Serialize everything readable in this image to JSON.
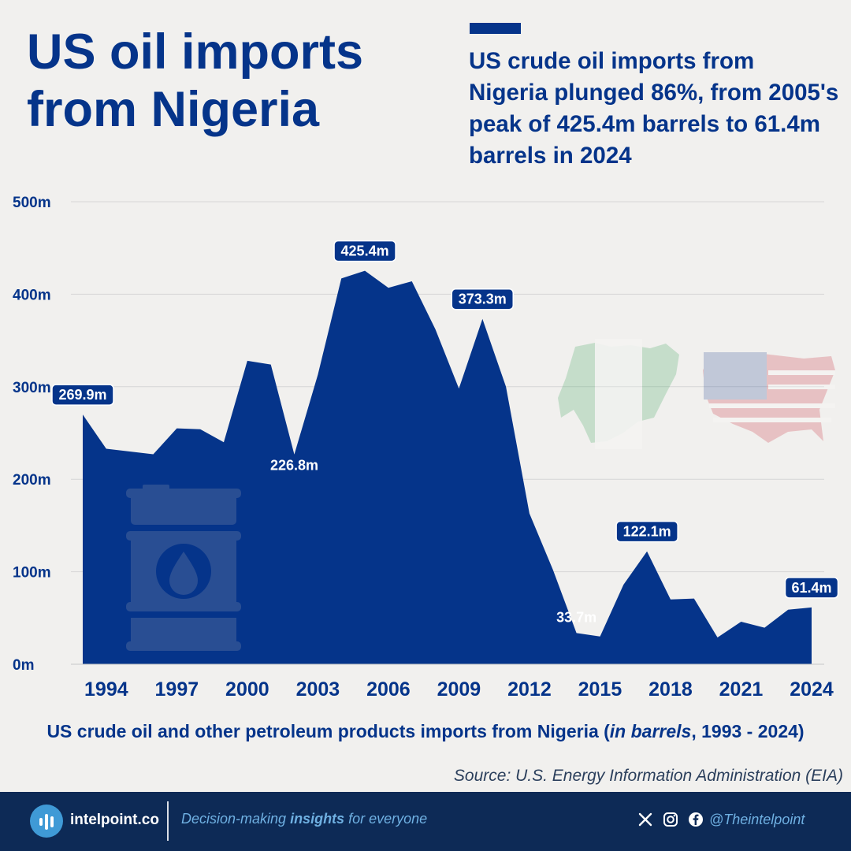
{
  "header": {
    "title_line1": "US oil imports",
    "title_line2": "from Nigeria",
    "subtitle": "US crude oil imports from Nigeria plunged 86%, from 2005's peak of 425.4m barrels to 61.4m barrels in 2024"
  },
  "colors": {
    "primary": "#05348a",
    "background": "#f1f0ee",
    "footer": "#0d2a56",
    "accent_blue": "#3f9ad6"
  },
  "chart_data": {
    "type": "area",
    "x": [
      1993,
      1994,
      1995,
      1996,
      1997,
      1998,
      1999,
      2000,
      2001,
      2002,
      2003,
      2004,
      2005,
      2006,
      2007,
      2008,
      2009,
      2010,
      2011,
      2012,
      2013,
      2014,
      2015,
      2016,
      2017,
      2018,
      2019,
      2020,
      2021,
      2022,
      2023,
      2024
    ],
    "values": [
      269.9,
      233,
      230,
      227,
      255,
      254,
      240,
      328,
      324,
      226.8,
      313,
      417,
      425.4,
      407,
      414,
      362,
      298,
      373.3,
      300,
      163,
      102,
      33.7,
      30,
      86,
      122.1,
      70,
      71,
      29,
      46,
      39.5,
      59,
      61.4
    ],
    "xticks": [
      "1994",
      "1997",
      "2000",
      "2003",
      "2006",
      "2009",
      "2012",
      "2015",
      "2018",
      "2021",
      "2024"
    ],
    "yticks": [
      "0m",
      "100m",
      "200m",
      "300m",
      "400m",
      "500m"
    ],
    "ylim": [
      0,
      500
    ],
    "annotations": [
      {
        "year": 1993,
        "label": "269.9m",
        "style": "box"
      },
      {
        "year": 2002,
        "label": "226.8m",
        "style": "plain"
      },
      {
        "year": 2005,
        "label": "425.4m",
        "style": "box"
      },
      {
        "year": 2010,
        "label": "373.3m",
        "style": "box"
      },
      {
        "year": 2014,
        "label": "33.7m",
        "style": "plain"
      },
      {
        "year": 2017,
        "label": "122.1m",
        "style": "box"
      },
      {
        "year": 2024,
        "label": "61.4m",
        "style": "box"
      }
    ],
    "grid": true
  },
  "caption": {
    "prefix": "US crude oil and other petroleum products imports from Nigeria (",
    "italic": "in barrels",
    "suffix": ", 1993 - 2024)"
  },
  "source": "Source: U.S. Energy Information Administration (EIA)",
  "footer": {
    "brand": "intelpoint.co",
    "tagline_pre": "Decision-making ",
    "tagline_bold": "insights",
    "tagline_post": " for everyone",
    "handle": "@Theintelpoint",
    "icons": [
      "x-icon",
      "instagram-icon",
      "facebook-icon"
    ]
  }
}
